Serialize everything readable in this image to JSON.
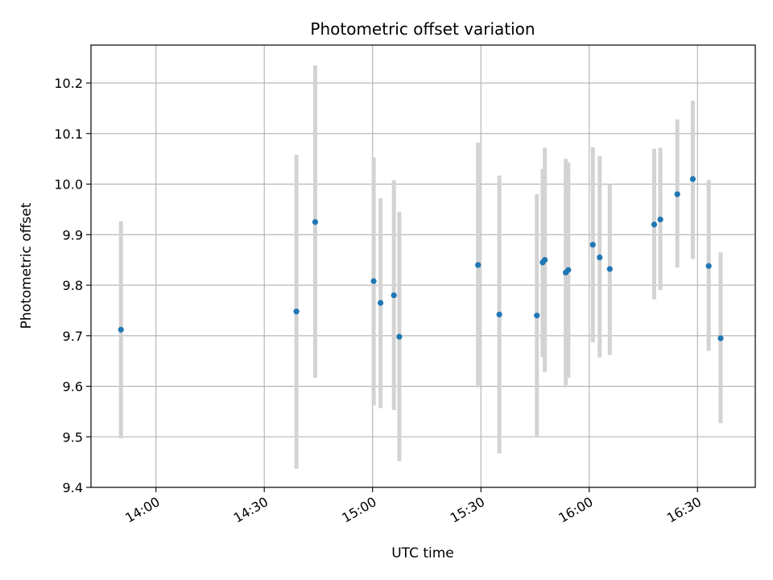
{
  "chart_data": {
    "type": "scatter",
    "title": "Photometric offset variation",
    "xlabel": "UTC time",
    "ylabel": "Photometric offset",
    "grid": true,
    "xlim_minutes": [
      822,
      1006
    ],
    "ylim": [
      9.4,
      10.275
    ],
    "xticks": [
      {
        "minutes": 840,
        "label": "14:00"
      },
      {
        "minutes": 870,
        "label": "14:30"
      },
      {
        "minutes": 900,
        "label": "15:00"
      },
      {
        "minutes": 930,
        "label": "15:30"
      },
      {
        "minutes": 960,
        "label": "16:00"
      },
      {
        "minutes": 990,
        "label": "16:30"
      }
    ],
    "yticks": [
      9.4,
      9.5,
      9.6,
      9.7,
      9.8,
      9.9,
      10.0,
      10.1,
      10.2
    ],
    "point_color": "#1f77b4",
    "errorbar_color": "#d3d3d3",
    "series": [
      {
        "name": "offset",
        "points": [
          {
            "t": 830.3,
            "y": 9.712,
            "ylow": 9.497,
            "yhigh": 9.927
          },
          {
            "t": 878.9,
            "y": 9.748,
            "ylow": 9.437,
            "yhigh": 10.058
          },
          {
            "t": 884.1,
            "y": 9.925,
            "ylow": 9.617,
            "yhigh": 10.235
          },
          {
            "t": 900.3,
            "y": 9.808,
            "ylow": 9.562,
            "yhigh": 10.053
          },
          {
            "t": 902.2,
            "y": 9.765,
            "ylow": 9.557,
            "yhigh": 9.972
          },
          {
            "t": 905.9,
            "y": 9.78,
            "ylow": 9.553,
            "yhigh": 10.008
          },
          {
            "t": 907.4,
            "y": 9.698,
            "ylow": 9.452,
            "yhigh": 9.945
          },
          {
            "t": 929.2,
            "y": 9.84,
            "ylow": 9.598,
            "yhigh": 10.082
          },
          {
            "t": 935.1,
            "y": 9.742,
            "ylow": 9.467,
            "yhigh": 10.017
          },
          {
            "t": 945.5,
            "y": 9.74,
            "ylow": 9.5,
            "yhigh": 9.98
          },
          {
            "t": 947.1,
            "y": 9.845,
            "ylow": 9.658,
            "yhigh": 10.03
          },
          {
            "t": 947.7,
            "y": 9.85,
            "ylow": 9.628,
            "yhigh": 10.072
          },
          {
            "t": 953.5,
            "y": 9.825,
            "ylow": 9.602,
            "yhigh": 10.05
          },
          {
            "t": 954.2,
            "y": 9.83,
            "ylow": 9.617,
            "yhigh": 10.043
          },
          {
            "t": 961.0,
            "y": 9.88,
            "ylow": 9.687,
            "yhigh": 10.073
          },
          {
            "t": 962.9,
            "y": 9.855,
            "ylow": 9.657,
            "yhigh": 10.055
          },
          {
            "t": 965.7,
            "y": 9.832,
            "ylow": 9.662,
            "yhigh": 10.0
          },
          {
            "t": 978.0,
            "y": 9.92,
            "ylow": 9.772,
            "yhigh": 10.07
          },
          {
            "t": 979.7,
            "y": 9.93,
            "ylow": 9.79,
            "yhigh": 10.072
          },
          {
            "t": 984.4,
            "y": 9.98,
            "ylow": 9.835,
            "yhigh": 10.128
          },
          {
            "t": 988.7,
            "y": 10.01,
            "ylow": 9.852,
            "yhigh": 10.165
          },
          {
            "t": 993.1,
            "y": 9.838,
            "ylow": 9.67,
            "yhigh": 10.008
          },
          {
            "t": 996.4,
            "y": 9.695,
            "ylow": 9.527,
            "yhigh": 9.865
          }
        ]
      }
    ]
  }
}
